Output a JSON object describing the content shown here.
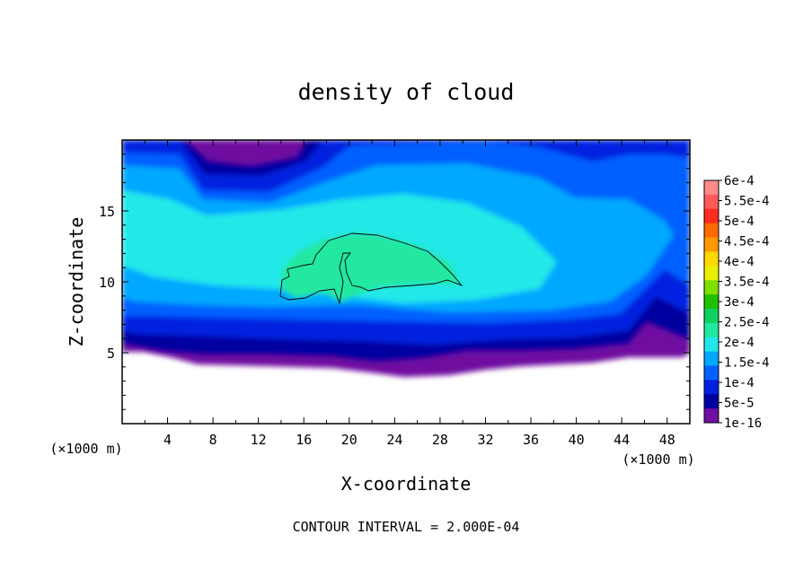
{
  "chart_data": {
    "type": "heatmap",
    "title": "density of cloud",
    "xlabel": "X-coordinate",
    "ylabel": "Z-coordinate",
    "x_unit": "(×1000 m)",
    "z_unit": "(×1000 m)",
    "footer": "CONTOUR INTERVAL = 2.000E-04",
    "xlim": [
      0,
      50
    ],
    "ylim": [
      0,
      20
    ],
    "x_ticks": [
      4,
      8,
      12,
      16,
      20,
      24,
      28,
      32,
      36,
      40,
      44,
      48
    ],
    "y_ticks": [
      5,
      10,
      15
    ],
    "highlighted_contour_value": 0.0002,
    "colorbar": {
      "labels": [
        "6e-4",
        "5.5e-4",
        "5e-4",
        "4.5e-4",
        "4e-4",
        "3.5e-4",
        "3e-4",
        "2.5e-4",
        "2e-4",
        "1.5e-4",
        "1e-4",
        "5e-5",
        "1e-16"
      ],
      "colors": [
        "#ff8a8a",
        "#ff5a5a",
        "#ff2a20",
        "#ff6a00",
        "#ff9a00",
        "#ffd800",
        "#e8f000",
        "#7fe000",
        "#20c000",
        "#10d060",
        "#20e8a0",
        "#20e8e8",
        "#00a8ff",
        "#0060ff",
        "#0020e0",
        "#0000a0",
        "#7010a0"
      ]
    }
  }
}
